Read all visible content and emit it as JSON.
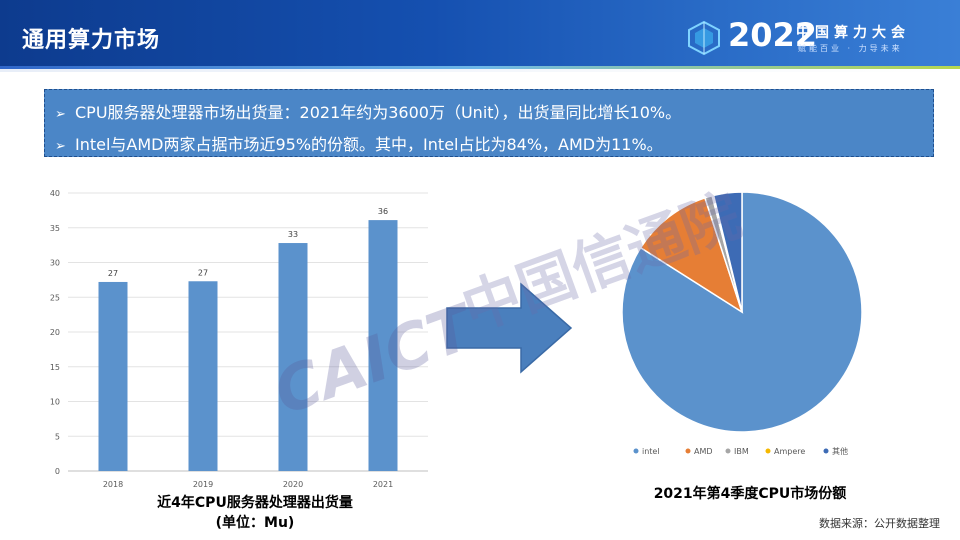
{
  "header": {
    "title": "通用算力市场",
    "logo": {
      "year": "2022",
      "name": "中国算力大会",
      "tagline": "赋能百业 · 力导未来"
    }
  },
  "bullets": [
    "CPU服务器处理器市场出货量：2021年约为3600万（Unit），出货量同比增长10%。",
    "Intel与AMD两家占据市场近95%的份额。其中，Intel占比为84%，AMD为11%。"
  ],
  "watermark": {
    "latin": "CAICT",
    "cn": "中国信通院"
  },
  "bar_caption": {
    "line1": "近4年CPU服务器处理器出货量",
    "line2": "(单位：Mu)"
  },
  "pie_caption": "2021年第4季度CPU市场份额",
  "source": "数据来源：公开数据整理",
  "colors": {
    "header": "#1550b0",
    "bar": "#5b92cc",
    "bullet_box": "#4b86c7",
    "arrow": "#4a7fbd"
  },
  "chart_data": [
    {
      "type": "bar",
      "categories": [
        "2018",
        "2019",
        "2020",
        "2021"
      ],
      "values": [
        27.2,
        27.3,
        32.8,
        36.1
      ],
      "data_labels": [
        "27",
        "27",
        "33",
        "36"
      ],
      "ylim": [
        0,
        40
      ],
      "yticks": [
        0,
        5,
        10,
        15,
        20,
        25,
        30,
        35,
        40
      ],
      "grid": true,
      "color": "#5b92cc"
    },
    {
      "type": "pie",
      "labels": [
        "intel",
        "AMD",
        "IBM",
        "Ampere",
        "其他"
      ],
      "values": [
        84,
        11,
        1,
        0.2,
        3.8
      ],
      "colors": [
        "#5b92cc",
        "#e67e35",
        "#a6a6a6",
        "#f5b800",
        "#3d6bb5"
      ],
      "legend": "bottom"
    }
  ]
}
